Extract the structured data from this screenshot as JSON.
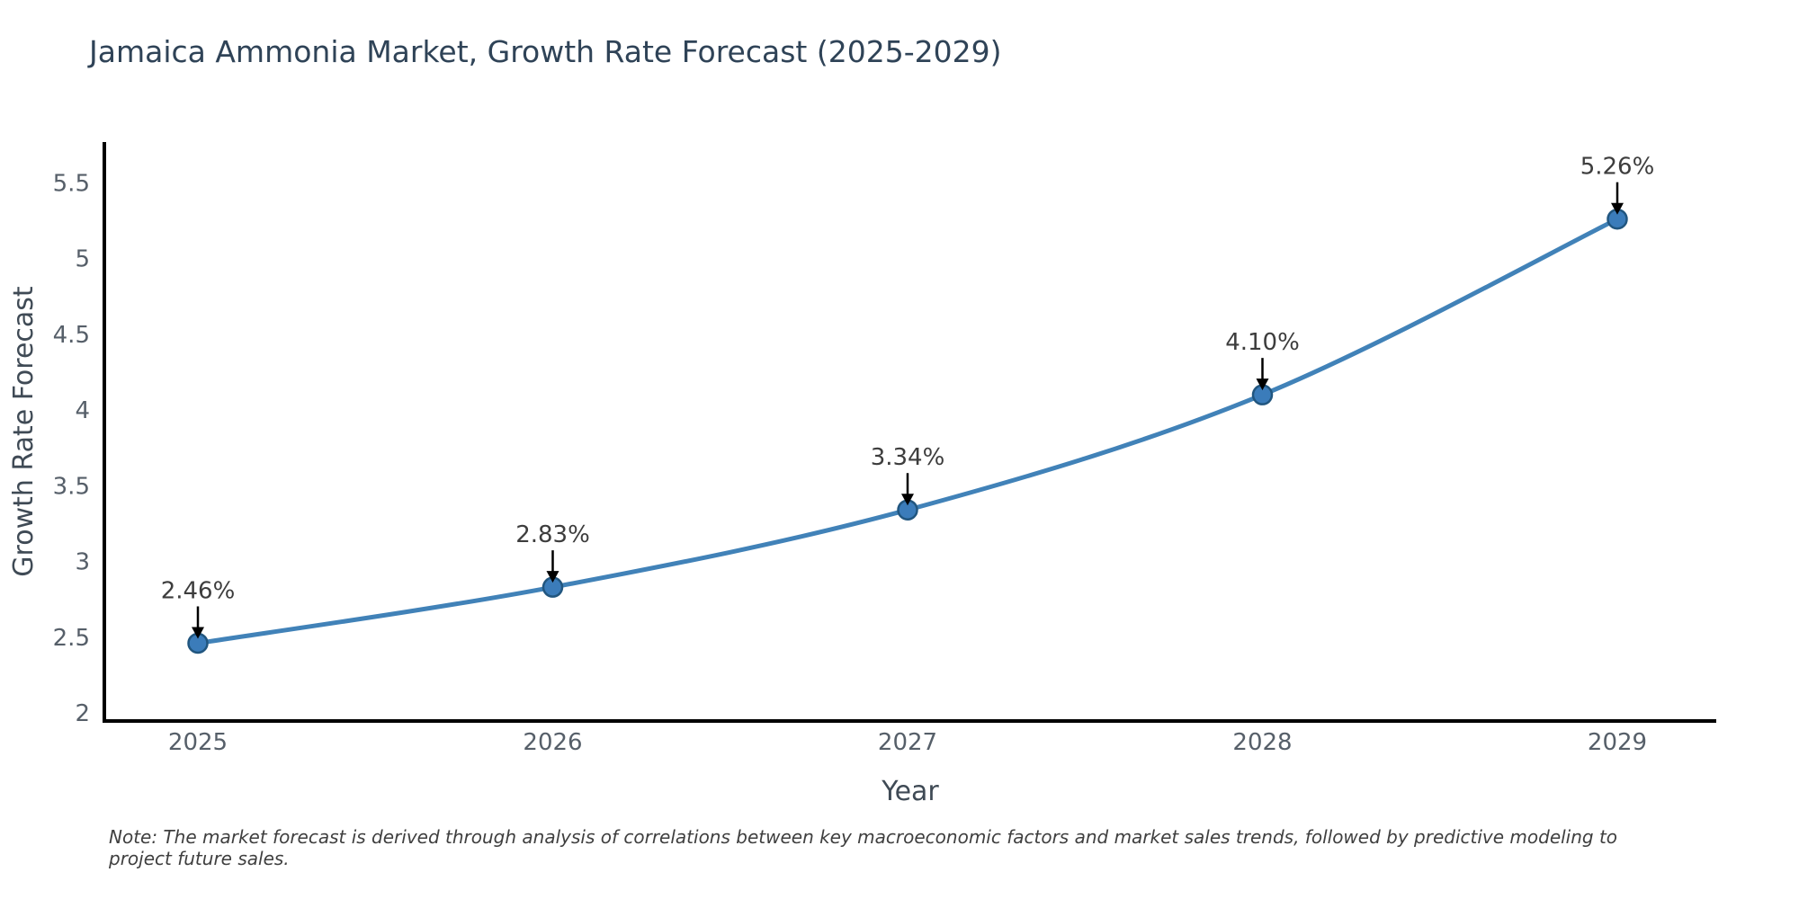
{
  "title": "Jamaica Ammonia Market, Growth Rate Forecast (2025-2029)",
  "note": "Note: The market forecast is derived through analysis of correlations between key macroeconomic factors and market sales trends, followed by predictive modeling to project future sales.",
  "chart_data": {
    "type": "line",
    "line_shape": "spline",
    "title": "Jamaica Ammonia Market, Growth Rate Forecast (2025-2029)",
    "xlabel": "Year",
    "ylabel": "Growth Rate Forecast",
    "x": [
      2025,
      2026,
      2027,
      2028,
      2029
    ],
    "x_tick_labels": [
      "2025",
      "2026",
      "2027",
      "2028",
      "2029"
    ],
    "values": [
      2.46,
      2.83,
      3.34,
      4.1,
      5.26
    ],
    "point_labels": [
      "2.46%",
      "2.83%",
      "3.34%",
      "4.10%",
      "5.26%"
    ],
    "y_ticks": [
      2,
      2.5,
      3,
      3.5,
      4,
      4.5,
      5,
      5.5
    ],
    "y_tick_labels": [
      "2",
      "2.5",
      "3",
      "3.5",
      "4",
      "4.5",
      "5",
      "5.5"
    ],
    "ylim": [
      2,
      5.5
    ],
    "grid": false,
    "legend": "none",
    "colors": {
      "line": "#4182b8",
      "marker_fill": "#3b7cba",
      "marker_edge": "#21567f",
      "axis": "#000000",
      "arrow": "#000000",
      "tick_label": "#565f69",
      "axis_title": "#3f4a55",
      "chart_title": "#2f4357",
      "annotation": "#3d3d3d"
    }
  }
}
